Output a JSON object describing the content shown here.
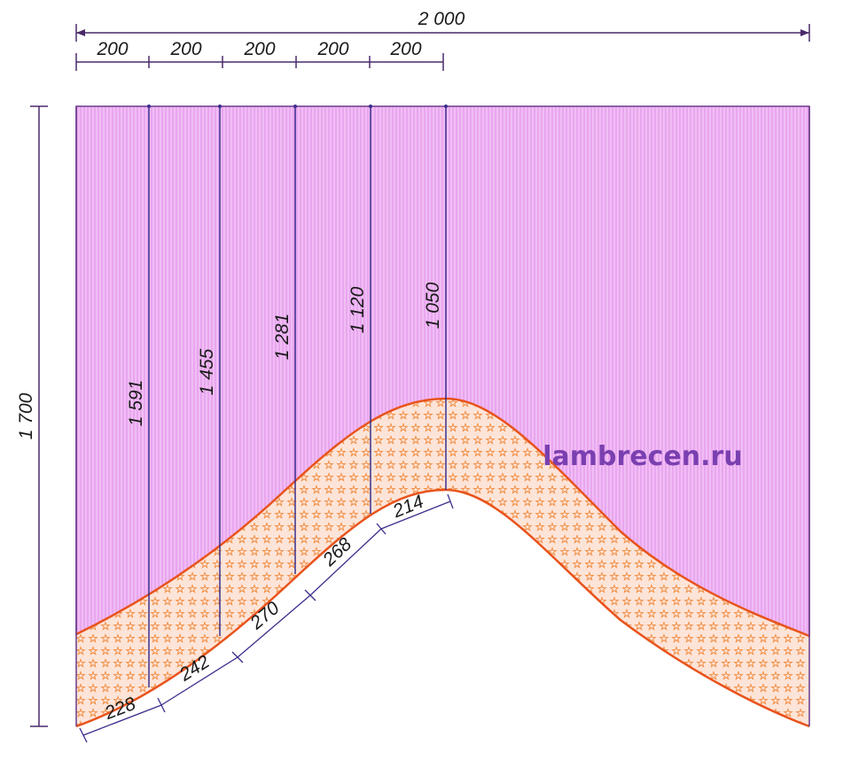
{
  "diagram": {
    "total_width": "2 000",
    "total_height": "1 700",
    "top_segments": [
      "200",
      "200",
      "200",
      "200",
      "200"
    ],
    "vertical_heights": [
      "1 591",
      "1 455",
      "1 281",
      "1 120",
      "1 050"
    ],
    "curve_segments": [
      "228",
      "242",
      "270",
      "268",
      "214"
    ],
    "watermark": "lambrecen.ru"
  },
  "colors": {
    "panel_fill": "#e9a6ef",
    "band_fill": "#fde4d8",
    "band_star": "#f08a3c",
    "curve_stroke": "#e8531c",
    "dimension_line": "#4a2a6a",
    "vertical_line": "#3b2e8c",
    "watermark": "#7a3fb0"
  },
  "icons": {
    "dimension_tick": "slash-tick",
    "band_pattern": "star-pattern"
  }
}
